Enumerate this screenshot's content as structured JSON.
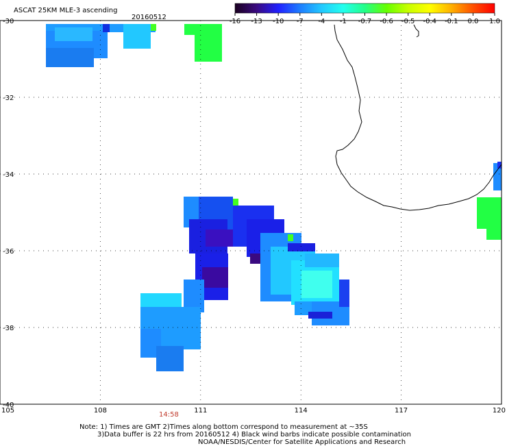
{
  "header": {
    "product": "ASCAT 25KM MLE-3 ascending",
    "date": "20160512"
  },
  "colorbar": {
    "labels": [
      "-16",
      "-13",
      "-10",
      "-7",
      "-4",
      "-1",
      "-0.7",
      "-0.6",
      "-0.5",
      "-0.4",
      "-0.1",
      "0.0",
      "1.0"
    ],
    "stops": [
      "#1a0020",
      "#3a0a80",
      "#2020ff",
      "#1e7dff",
      "#22c8ff",
      "#22ffee",
      "#22ff88",
      "#66ff00",
      "#c8ff00",
      "#ffff00",
      "#ffb000",
      "#ff5000",
      "#ff0000"
    ]
  },
  "axes": {
    "lat_labels": [
      "-30",
      "-32",
      "-34",
      "-36",
      "-38",
      "-40"
    ],
    "lon_labels": [
      "105",
      "108",
      "111",
      "114",
      "117",
      "120"
    ]
  },
  "pass_time": "14:58",
  "notes": {
    "line1": "Note: 1) Times are GMT 2)Times along bottom correspond to measurement at ~35S",
    "line2": "3)Data buffer is 22 hrs from 20160512 4) Black wind barbs indicate possible contamination",
    "line3": "NOAA/NESDIS/Center for Satellite Applications and Research"
  }
}
